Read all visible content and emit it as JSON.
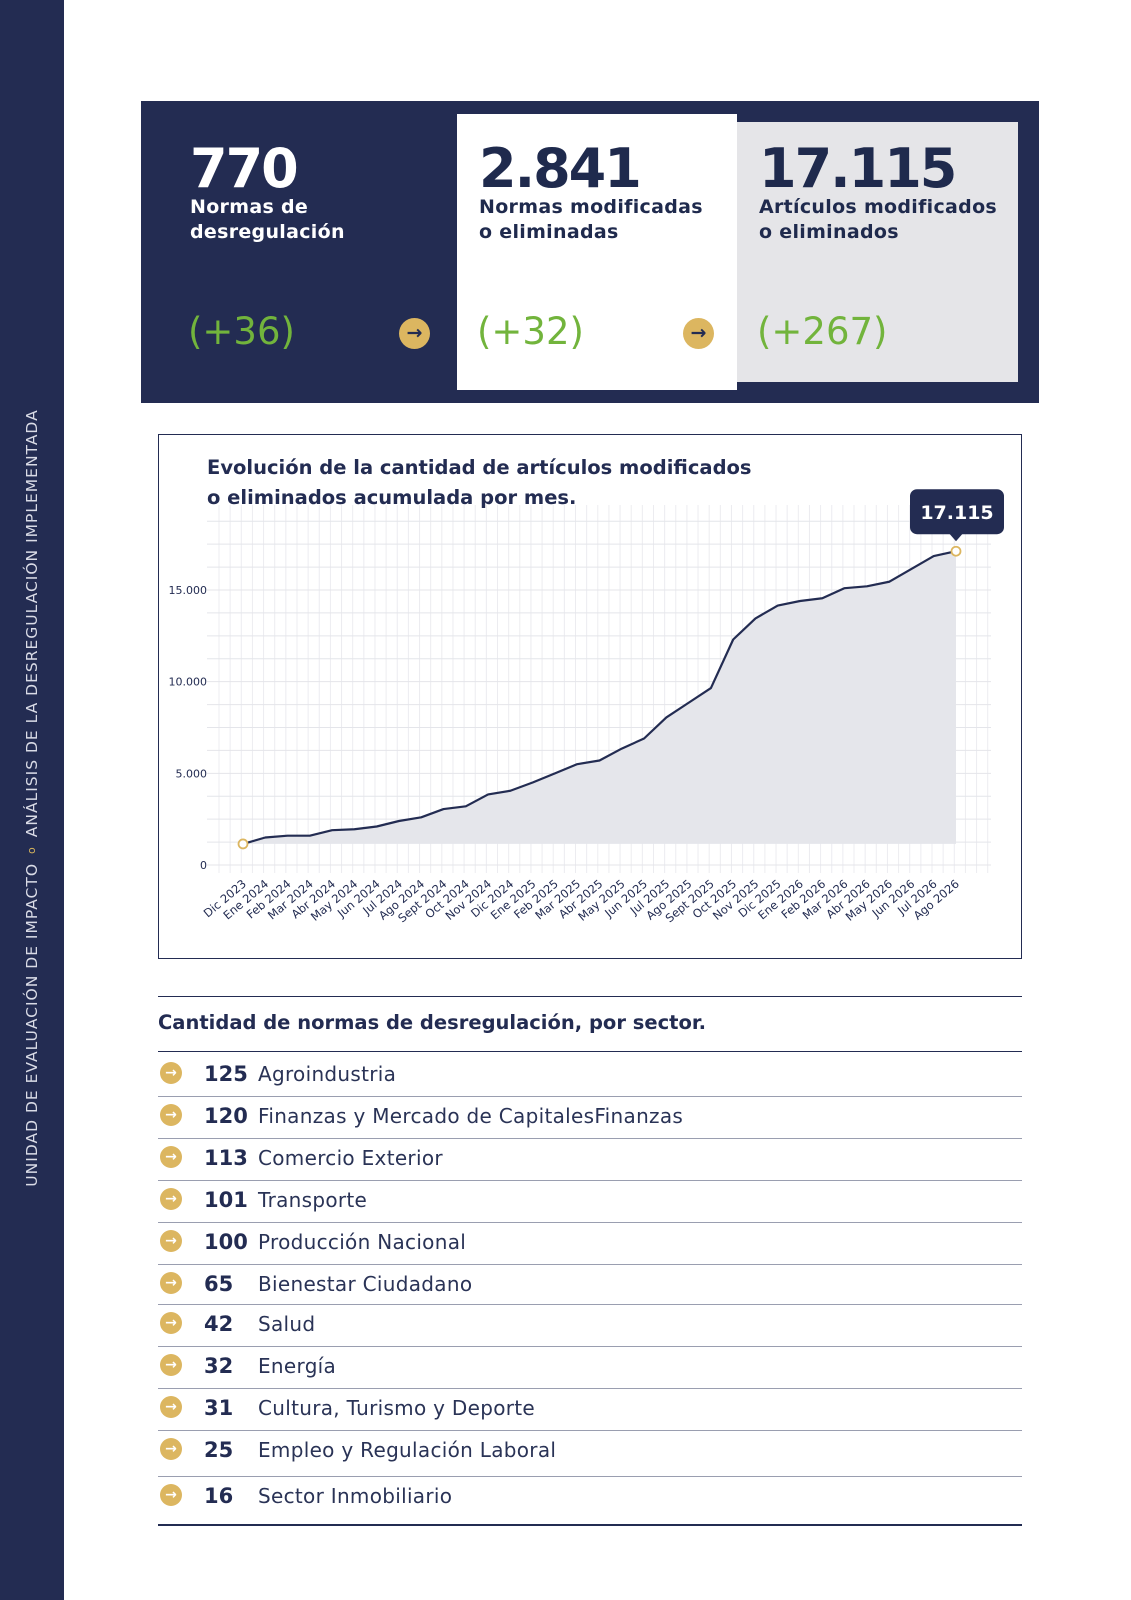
{
  "sidebar": {
    "left_text": "UNIDAD DE EVALUACIÓN DE IMPACTO",
    "separator": "o",
    "right_text": "ANÁLISIS DE LA DESREGULACIÓN IMPLEMENTADA"
  },
  "stats": [
    {
      "number": "770",
      "label_line1": "Normas de",
      "label_line2": "desregulación",
      "delta": "(+36)",
      "arrow": "→"
    },
    {
      "number": "2.841",
      "label_line1": "Normas modificadas",
      "label_line2": "o eliminadas",
      "delta": "(+32)",
      "arrow": "→"
    },
    {
      "number": "17.115",
      "label_line1": "Artículos modificados",
      "label_line2": "o eliminados",
      "delta": "(+267)"
    }
  ],
  "chart": {
    "title_line1": "Evolución de la cantidad de artículos modificados",
    "title_line2": "o eliminados acumulada por mes."
  },
  "chart_data": {
    "type": "area",
    "title": "Evolución de la cantidad de artículos modificados o eliminados acumulada por mes.",
    "categories": [
      "Dic 2023",
      "Ene 2024",
      "Feb 2024",
      "Mar 2024",
      "Abr 2024",
      "May 2024",
      "Jun 2024",
      "Jul 2024",
      "Ago 2024",
      "Sept 2024",
      "Oct 2024",
      "Nov 2024",
      "Dic 2024",
      "Ene 2025",
      "Feb 2025",
      "Mar 2025",
      "Abr 2025",
      "May 2025",
      "Jun 2025",
      "Jul 2025",
      "Ago 2025",
      "Sept 2025",
      "Oct 2025",
      "Nov 2025",
      "Dic 2025",
      "Ene 2026",
      "Feb 2026",
      "Mar 2026",
      "Abr 2026",
      "May 2026",
      "Jun 2026",
      "Jul 2026",
      "Ago 2026"
    ],
    "values": [
      1150,
      1500,
      1600,
      1600,
      1900,
      1950,
      2100,
      2400,
      2600,
      3050,
      3200,
      3850,
      4050,
      4500,
      5000,
      5500,
      5700,
      6350,
      6900,
      8050,
      8850,
      9650,
      12300,
      13450,
      14150,
      14400,
      14550,
      15100,
      15200,
      15450,
      16150,
      16850,
      17115
    ],
    "y_ticks": [
      "0",
      "5.000",
      "10.000",
      "15.000"
    ],
    "y_tick_values": [
      0,
      5000,
      10000,
      15000
    ],
    "ylim": [
      0,
      19200
    ],
    "grid": true,
    "highlight_label": "17.115",
    "line_color": "#232c52",
    "fill_color": "#e5e6eb",
    "marker_color": "#dcb660"
  },
  "sectors": {
    "title": "Cantidad de normas de desregulación, por sector.",
    "bullet": "→",
    "items": [
      {
        "count": "125",
        "name": "Agroindustria"
      },
      {
        "count": "120",
        "name": "Finanzas y Mercado de CapitalesFinanzas"
      },
      {
        "count": "113",
        "name": "Comercio Exterior"
      },
      {
        "count": "101",
        "name": "Transporte"
      },
      {
        "count": "100",
        "name": "Producción Nacional"
      },
      {
        "count": "65",
        "name": "Bienestar Ciudadano"
      },
      {
        "count": "42",
        "name": "Salud"
      },
      {
        "count": "32",
        "name": "Energía"
      },
      {
        "count": "31",
        "name": "Cultura, Turismo y Deporte"
      },
      {
        "count": "25",
        "name": "Empleo y Regulación Laboral"
      },
      {
        "count": "16",
        "name": "Sector Inmobiliario"
      }
    ]
  },
  "colors": {
    "navy": "#232c52",
    "gold": "#dcb660",
    "green": "#72b43c",
    "light_gray": "#e5e5e8"
  }
}
